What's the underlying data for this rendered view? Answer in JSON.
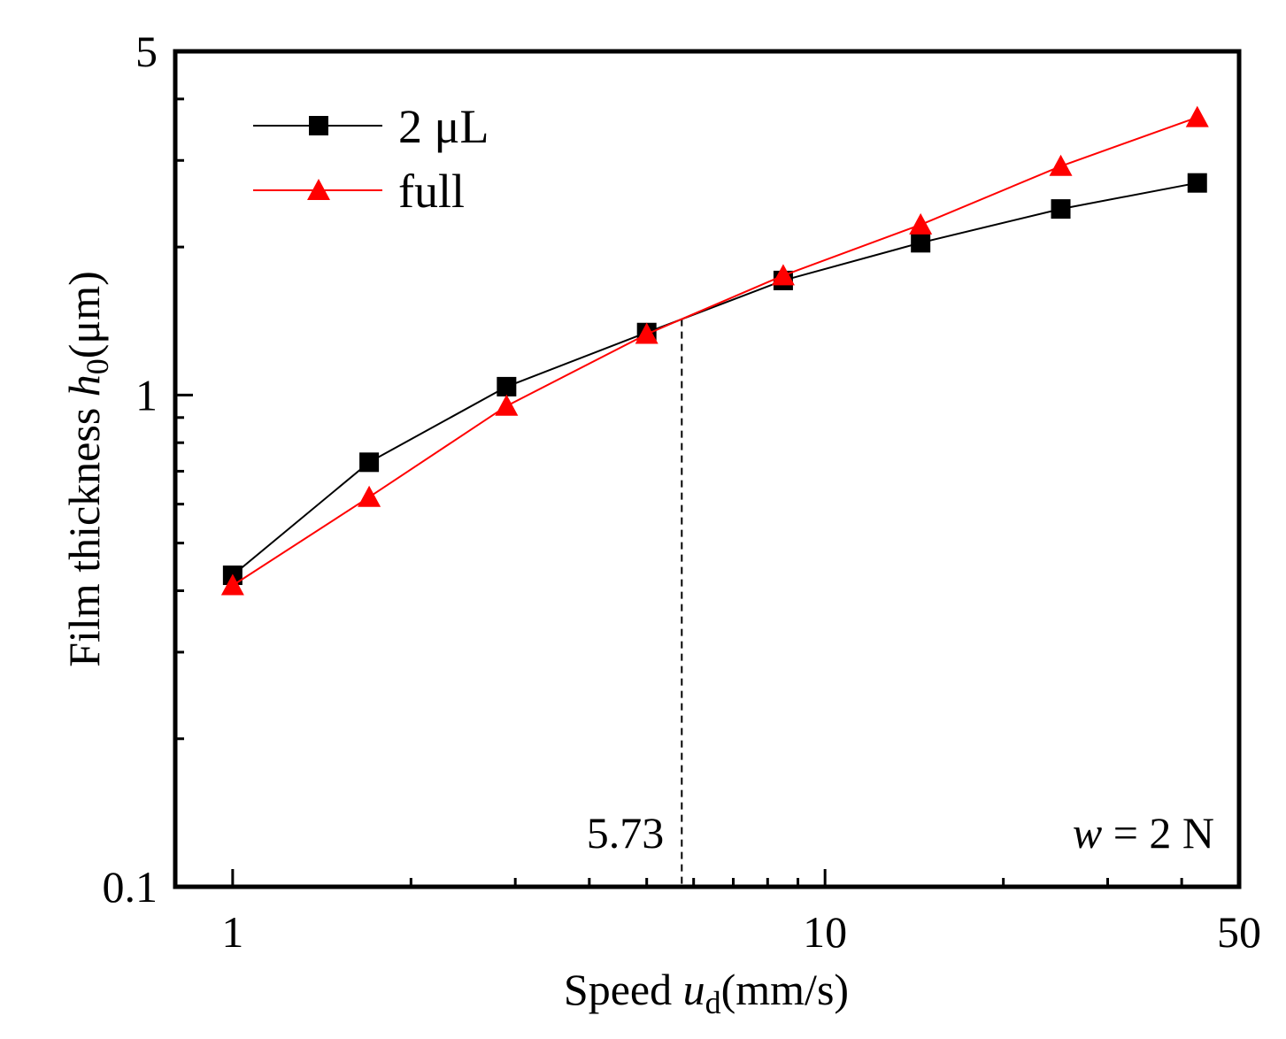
{
  "chart_data": {
    "type": "line",
    "xscale": "log",
    "yscale": "log",
    "xlim": [
      0.8,
      50
    ],
    "ylim": [
      0.1,
      5
    ],
    "x_ticks": [
      "1",
      "10",
      "50"
    ],
    "y_ticks": [
      "0.1",
      "1",
      "5"
    ],
    "xlabel": {
      "prefix": "Speed ",
      "var": "u",
      "sub": "d",
      "suffix": "(mm/s)"
    },
    "ylabel": {
      "prefix": "Film thickness ",
      "var": "h",
      "sub": "0",
      "suffix": "(μm)"
    },
    "series": [
      {
        "name": "2 μL",
        "color": "#000000",
        "marker": "square",
        "x": [
          1.0,
          1.7,
          2.9,
          5.0,
          8.5,
          14.5,
          25.0,
          42.5
        ],
        "y": [
          0.43,
          0.73,
          1.04,
          1.34,
          1.71,
          2.04,
          2.39,
          2.7
        ]
      },
      {
        "name": "full",
        "color": "#ff0000",
        "marker": "triangle",
        "x": [
          1.0,
          1.7,
          2.9,
          5.0,
          8.5,
          14.5,
          25.0,
          42.5
        ],
        "y": [
          0.41,
          0.62,
          0.95,
          1.33,
          1.75,
          2.22,
          2.92,
          3.67
        ]
      }
    ],
    "reference_line": {
      "x": 5.73,
      "label": "5.73",
      "style": "dashed"
    },
    "annotation": {
      "var": "w",
      "text": " = 2 N"
    },
    "legend_position": "top-left",
    "grid": false
  }
}
